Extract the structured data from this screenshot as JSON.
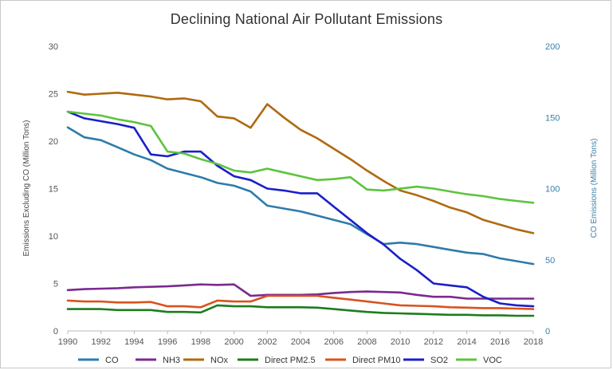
{
  "chart_data": {
    "type": "line",
    "title": "Declining National Air Pollutant Emissions",
    "ylabel": "Emissions Excluding CO (Million Tons)",
    "y2label": "CO Emissions (Million Tons)",
    "xlim": [
      1990,
      2018
    ],
    "ylim": [
      0,
      30
    ],
    "y2lim": [
      0,
      200
    ],
    "x_ticks": [
      "1990",
      "1992",
      "1994",
      "1996",
      "1998",
      "2000",
      "2002",
      "2004",
      "2006",
      "2008",
      "2010",
      "2012",
      "2014",
      "2016",
      "2018"
    ],
    "y_ticks": [
      "0",
      "5",
      "10",
      "15",
      "20",
      "25",
      "30"
    ],
    "y2_ticks": [
      "0",
      "50",
      "100",
      "150",
      "200"
    ],
    "legend_position": "bottom",
    "x": [
      1990,
      1991,
      1992,
      1993,
      1994,
      1995,
      1996,
      1997,
      1998,
      1999,
      2000,
      2001,
      2002,
      2003,
      2004,
      2005,
      2006,
      2007,
      2008,
      2009,
      2010,
      2011,
      2012,
      2013,
      2014,
      2015,
      2016,
      2017,
      2018
    ],
    "series": [
      {
        "name": "CO",
        "color": "#2e7bab",
        "axis": "right",
        "values": [
          143,
          136,
          134,
          129,
          124,
          120,
          114,
          111,
          108,
          104,
          102,
          98,
          88,
          86,
          84,
          81,
          78,
          75,
          68,
          61,
          62,
          61,
          59,
          57,
          55,
          54,
          51,
          49,
          47
        ]
      },
      {
        "name": "NH3",
        "color": "#7b2a8e",
        "axis": "left",
        "values": [
          4.3,
          4.4,
          4.45,
          4.5,
          4.6,
          4.65,
          4.7,
          4.8,
          4.9,
          4.85,
          4.9,
          3.7,
          3.8,
          3.8,
          3.8,
          3.85,
          4.0,
          4.1,
          4.15,
          4.1,
          4.05,
          3.8,
          3.6,
          3.6,
          3.4,
          3.4,
          3.4,
          3.4,
          3.4
        ]
      },
      {
        "name": "NOx",
        "color": "#b06a10",
        "axis": "left",
        "values": [
          25.2,
          24.9,
          25.0,
          25.1,
          24.9,
          24.7,
          24.4,
          24.5,
          24.2,
          22.6,
          22.4,
          21.4,
          23.9,
          22.5,
          21.2,
          20.3,
          19.2,
          18.1,
          16.9,
          15.8,
          14.8,
          14.3,
          13.7,
          13.0,
          12.5,
          11.7,
          11.2,
          10.7,
          10.3
        ]
      },
      {
        "name": "Direct PM2.5",
        "color": "#1e7d1e",
        "axis": "left",
        "values": [
          2.3,
          2.3,
          2.3,
          2.2,
          2.2,
          2.2,
          2.0,
          2.0,
          1.95,
          2.7,
          2.6,
          2.6,
          2.5,
          2.5,
          2.5,
          2.45,
          2.3,
          2.15,
          2.0,
          1.9,
          1.85,
          1.8,
          1.75,
          1.7,
          1.7,
          1.65,
          1.65,
          1.6,
          1.6
        ]
      },
      {
        "name": "Direct PM10",
        "color": "#d9531e",
        "axis": "left",
        "values": [
          3.2,
          3.1,
          3.1,
          3.0,
          3.0,
          3.05,
          2.6,
          2.6,
          2.5,
          3.2,
          3.1,
          3.1,
          3.7,
          3.7,
          3.7,
          3.7,
          3.5,
          3.3,
          3.1,
          2.9,
          2.7,
          2.65,
          2.6,
          2.5,
          2.45,
          2.4,
          2.4,
          2.35,
          2.3
        ]
      },
      {
        "name": "SO2",
        "color": "#1a1fc9",
        "axis": "left",
        "values": [
          23.1,
          22.4,
          22.1,
          21.8,
          21.4,
          18.6,
          18.4,
          18.9,
          18.9,
          17.4,
          16.3,
          15.9,
          15.0,
          14.8,
          14.5,
          14.5,
          13.1,
          11.7,
          10.3,
          9.1,
          7.6,
          6.4,
          5.0,
          4.8,
          4.6,
          3.6,
          2.9,
          2.7,
          2.6
        ]
      },
      {
        "name": "VOC",
        "color": "#5cc43e",
        "axis": "left",
        "values": [
          23.1,
          22.9,
          22.7,
          22.3,
          22.0,
          21.6,
          18.9,
          18.7,
          18.1,
          17.6,
          16.9,
          16.7,
          17.1,
          16.7,
          16.3,
          15.9,
          16.0,
          16.2,
          14.9,
          14.8,
          15.0,
          15.2,
          15.0,
          14.7,
          14.4,
          14.2,
          13.9,
          13.7,
          13.5
        ]
      }
    ]
  }
}
